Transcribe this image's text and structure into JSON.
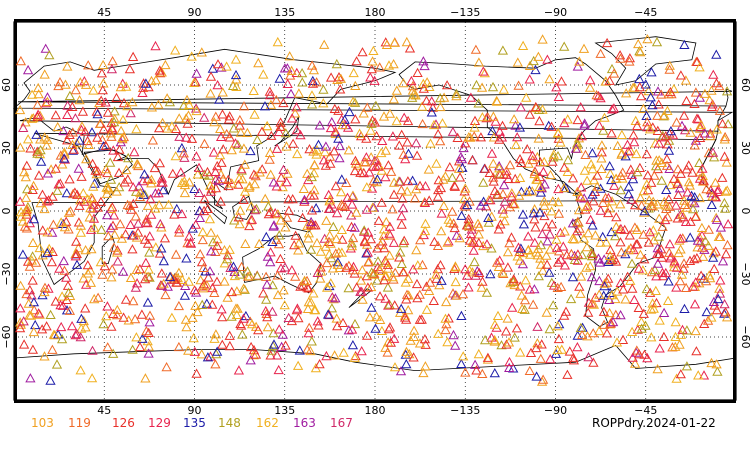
{
  "title": "ROPPdry.2024-01-22",
  "map": {
    "x_ticks": [
      "45",
      "90",
      "135",
      "180",
      "−135",
      "−90",
      "−45"
    ],
    "y_ticks": [
      "60",
      "30",
      "0",
      "−30",
      "−60"
    ],
    "grid": "dotted"
  },
  "legend": [
    {
      "label": "103",
      "color": "#f0a020"
    },
    {
      "label": "119",
      "color": "#f06a28"
    },
    {
      "label": "126",
      "color": "#e8302a"
    },
    {
      "label": "129",
      "color": "#e8244e"
    },
    {
      "label": "135",
      "color": "#1c1ca8"
    },
    {
      "label": "148",
      "color": "#b0a020"
    },
    {
      "label": "162",
      "color": "#f0b020"
    },
    {
      "label": "163",
      "color": "#a01ca0"
    },
    {
      "label": "167",
      "color": "#d02868"
    }
  ],
  "chart_data": {
    "type": "scatter",
    "marker": "open-triangle",
    "xlim": [
      0,
      360
    ],
    "ylim": [
      -90,
      90
    ],
    "point_count": 2200,
    "weights": [
      22,
      10,
      24,
      12,
      7,
      8,
      12,
      5,
      3
    ]
  }
}
